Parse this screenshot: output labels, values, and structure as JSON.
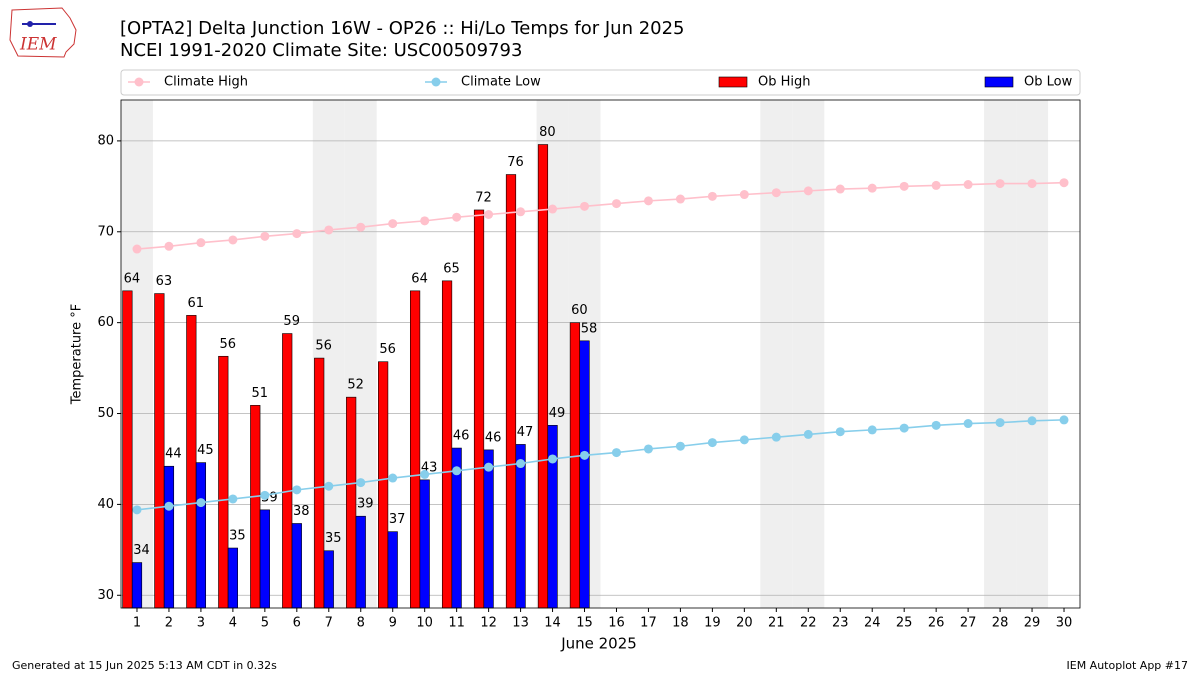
{
  "chart_data": {
    "type": "bar_line",
    "title": "[OPTA2] Delta Junction 16W - OP26 :: Hi/Lo Temps for Jun 2025",
    "subtitle": "NCEI 1991-2020 Climate Site: USC00509793",
    "logo_text": "IEM",
    "y_label": "Temperature °F",
    "x_label": "June 2025",
    "footer_left": "Generated at 15 Jun 2025 5:13 AM CDT in 0.32s",
    "footer_right": "IEM Autoplot App #17",
    "x": [
      1,
      2,
      3,
      4,
      5,
      6,
      7,
      8,
      9,
      10,
      11,
      12,
      13,
      14,
      15,
      16,
      17,
      18,
      19,
      20,
      21,
      22,
      23,
      24,
      25,
      26,
      27,
      28,
      29,
      30
    ],
    "xlim": [
      0.5,
      30.5
    ],
    "xticks": [
      1,
      2,
      3,
      4,
      5,
      6,
      7,
      8,
      9,
      10,
      11,
      12,
      13,
      14,
      15,
      16,
      17,
      18,
      19,
      20,
      21,
      22,
      23,
      24,
      25,
      26,
      27,
      28,
      29,
      30
    ],
    "ylim": [
      28.6,
      84.5
    ],
    "yticks": [
      30,
      40,
      50,
      60,
      70,
      80
    ],
    "grid": true,
    "shaded_days": [
      1,
      7,
      8,
      14,
      15,
      21,
      22,
      28,
      29
    ],
    "series": [
      {
        "name": "Climate High",
        "kind": "line",
        "color": "#ffc0cb",
        "values": [
          68.1,
          68.4,
          68.8,
          69.1,
          69.5,
          69.8,
          70.2,
          70.5,
          70.9,
          71.2,
          71.6,
          71.9,
          72.2,
          72.5,
          72.8,
          73.1,
          73.4,
          73.6,
          73.9,
          74.1,
          74.3,
          74.5,
          74.7,
          74.8,
          75.0,
          75.1,
          75.2,
          75.3,
          75.3,
          75.4
        ]
      },
      {
        "name": "Climate Low",
        "kind": "line",
        "color": "#87ceeb",
        "values": [
          39.4,
          39.8,
          40.2,
          40.6,
          41.0,
          41.6,
          42.0,
          42.4,
          42.9,
          43.3,
          43.7,
          44.1,
          44.5,
          45.0,
          45.4,
          45.7,
          46.1,
          46.4,
          46.8,
          47.1,
          47.4,
          47.7,
          48.0,
          48.2,
          48.4,
          48.7,
          48.9,
          49.0,
          49.2,
          49.3
        ]
      },
      {
        "name": "Ob High",
        "kind": "bar",
        "color": "#ff0000",
        "values": [
          63.5,
          63.2,
          60.8,
          56.3,
          50.9,
          58.8,
          56.1,
          51.8,
          55.7,
          63.5,
          64.6,
          72.4,
          76.3,
          79.6,
          60.0,
          null,
          null,
          null,
          null,
          null,
          null,
          null,
          null,
          null,
          null,
          null,
          null,
          null,
          null,
          null
        ],
        "value_labels": [
          "64",
          "63",
          "61",
          "56",
          "51",
          "59",
          "56",
          "52",
          "56",
          "64",
          "65",
          "72",
          "76",
          "80",
          "60",
          null,
          null,
          null,
          null,
          null,
          null,
          null,
          null,
          null,
          null,
          null,
          null,
          null,
          null,
          null
        ]
      },
      {
        "name": "Ob Low",
        "kind": "bar",
        "color": "#0000ff",
        "values": [
          33.6,
          44.2,
          44.6,
          35.2,
          39.4,
          37.9,
          34.9,
          38.7,
          37.0,
          42.7,
          46.2,
          46.0,
          46.6,
          48.7,
          58.0,
          null,
          null,
          null,
          null,
          null,
          null,
          null,
          null,
          null,
          null,
          null,
          null,
          null,
          null,
          null
        ],
        "value_labels": [
          "34",
          "44",
          "45",
          "35",
          "39",
          "38",
          "35",
          "39",
          "37",
          "43",
          "46",
          "46",
          "47",
          "49",
          "58",
          null,
          null,
          null,
          null,
          null,
          null,
          null,
          null,
          null,
          null,
          null,
          null,
          null,
          null,
          null
        ]
      }
    ]
  }
}
